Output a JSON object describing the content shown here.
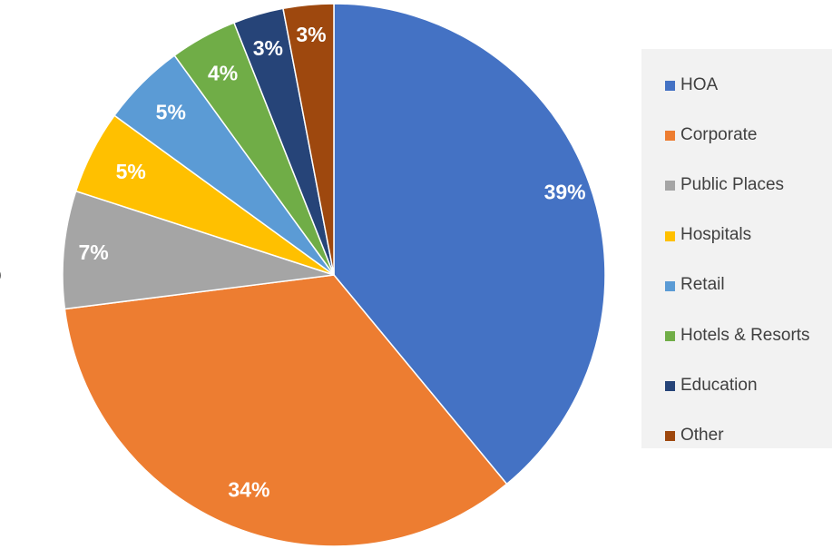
{
  "chart_data": {
    "type": "pie",
    "title": "",
    "legend_position": "right",
    "start_angle_deg": 0,
    "direction": "clockwise",
    "categories": [
      "HOA",
      "Corporate",
      "Public Places",
      "Hospitals",
      "Retail",
      "Hotels & Resorts",
      "Education",
      "Other"
    ],
    "values": [
      39,
      34,
      7,
      5,
      5,
      4,
      3,
      3
    ],
    "labels": [
      "39%",
      "34%",
      "7%",
      "5%",
      "5%",
      "4%",
      "3%",
      "3%"
    ],
    "colors": [
      "#4472C4",
      "#ED7D31",
      "#A5A5A5",
      "#FFC000",
      "#5B9BD5",
      "#70AD47",
      "#264478",
      "#9E480E"
    ]
  }
}
